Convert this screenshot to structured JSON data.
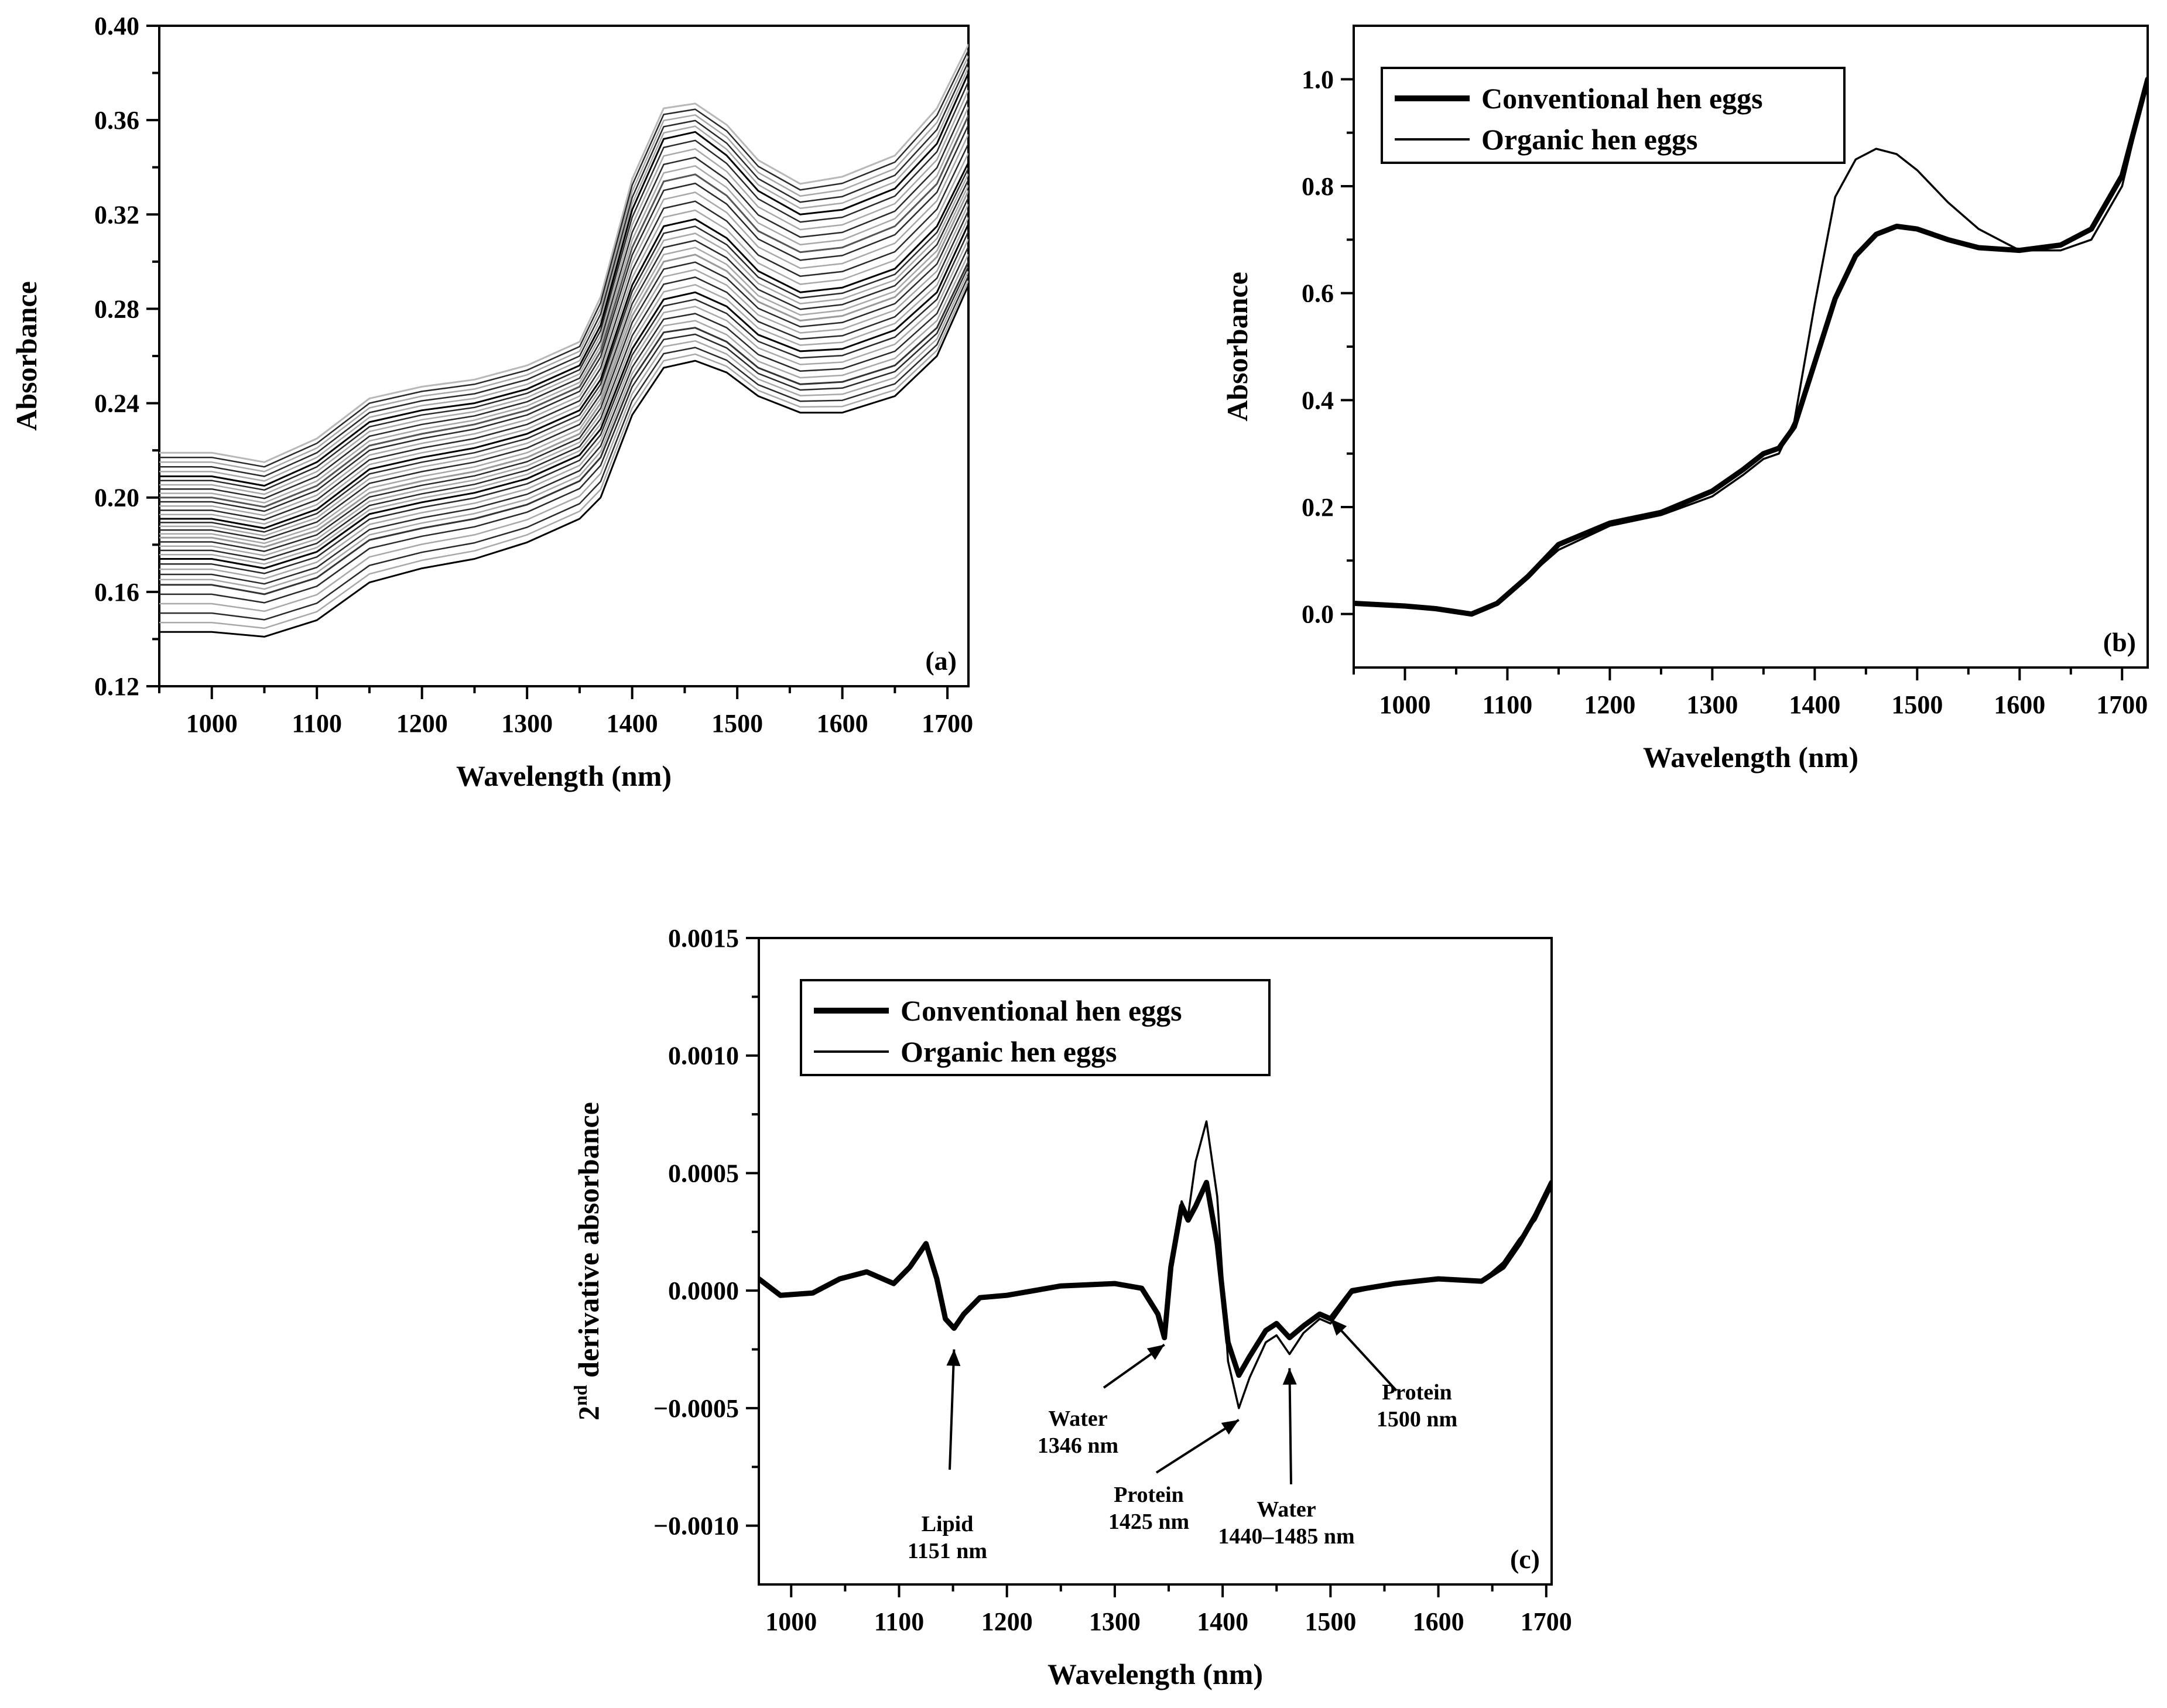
{
  "chart_data": [
    {
      "id": "a",
      "type": "line",
      "panel_label": "(a)",
      "xlabel": "Wavelength (nm)",
      "ylabel": "Absorbance",
      "xlim": [
        950,
        1720
      ],
      "ylim": [
        0.12,
        0.4
      ],
      "xticks": [
        1000,
        1100,
        1200,
        1300,
        1400,
        1500,
        1600,
        1700
      ],
      "xtick_labels": [
        "1000",
        "1100",
        "1200",
        "1300",
        "1400",
        "1500",
        "1600",
        "1700"
      ],
      "yticks": [
        0.12,
        0.16,
        0.2,
        0.24,
        0.28,
        0.32,
        0.36,
        0.4
      ],
      "ytick_labels": [
        "0.12",
        "0.16",
        "0.20",
        "0.24",
        "0.28",
        "0.32",
        "0.36",
        "0.40"
      ],
      "description_series": "many overlapping individual sample spectra",
      "x": [
        950,
        1000,
        1050,
        1100,
        1150,
        1200,
        1250,
        1300,
        1350,
        1370,
        1400,
        1430,
        1460,
        1490,
        1520,
        1560,
        1600,
        1650,
        1690,
        1720
      ],
      "series": [
        {
          "name": "highest spectrum",
          "color": "#b8b8b8",
          "values": [
            0.219,
            0.219,
            0.215,
            0.225,
            0.242,
            0.247,
            0.25,
            0.256,
            0.266,
            0.285,
            0.335,
            0.365,
            0.367,
            0.358,
            0.343,
            0.333,
            0.336,
            0.345,
            0.365,
            0.392
          ]
        },
        {
          "name": "upper spectrum",
          "color": "#000000",
          "values": [
            0.209,
            0.209,
            0.205,
            0.215,
            0.232,
            0.237,
            0.24,
            0.246,
            0.256,
            0.273,
            0.322,
            0.352,
            0.355,
            0.345,
            0.33,
            0.32,
            0.322,
            0.331,
            0.35,
            0.38
          ]
        },
        {
          "name": "upper-middle spectrum",
          "color": "#555555",
          "values": [
            0.2,
            0.2,
            0.196,
            0.205,
            0.222,
            0.227,
            0.231,
            0.237,
            0.247,
            0.262,
            0.306,
            0.334,
            0.337,
            0.328,
            0.313,
            0.304,
            0.306,
            0.315,
            0.333,
            0.362
          ]
        },
        {
          "name": "middle spectrum",
          "color": "#000000",
          "values": [
            0.191,
            0.191,
            0.187,
            0.195,
            0.212,
            0.217,
            0.221,
            0.227,
            0.237,
            0.25,
            0.29,
            0.315,
            0.318,
            0.31,
            0.296,
            0.287,
            0.289,
            0.297,
            0.315,
            0.342
          ]
        },
        {
          "name": "mid-grey spectrum",
          "color": "#9a9a9a",
          "values": [
            0.183,
            0.183,
            0.179,
            0.186,
            0.202,
            0.207,
            0.211,
            0.217,
            0.227,
            0.24,
            0.277,
            0.3,
            0.303,
            0.296,
            0.283,
            0.275,
            0.277,
            0.285,
            0.302,
            0.33
          ]
        },
        {
          "name": "lower-middle spectrum",
          "color": "#000000",
          "values": [
            0.174,
            0.174,
            0.17,
            0.177,
            0.193,
            0.198,
            0.202,
            0.208,
            0.218,
            0.229,
            0.263,
            0.284,
            0.287,
            0.281,
            0.269,
            0.262,
            0.263,
            0.271,
            0.287,
            0.316
          ]
        },
        {
          "name": "lower spectrum",
          "color": "#333333",
          "values": [
            0.163,
            0.163,
            0.159,
            0.166,
            0.182,
            0.187,
            0.191,
            0.197,
            0.207,
            0.217,
            0.25,
            0.27,
            0.272,
            0.266,
            0.255,
            0.248,
            0.249,
            0.256,
            0.272,
            0.3
          ]
        },
        {
          "name": "lowest spectrum",
          "color": "#000000",
          "values": [
            0.143,
            0.143,
            0.141,
            0.148,
            0.164,
            0.17,
            0.174,
            0.181,
            0.191,
            0.2,
            0.235,
            0.255,
            0.258,
            0.253,
            0.243,
            0.236,
            0.236,
            0.243,
            0.26,
            0.29
          ]
        }
      ]
    },
    {
      "id": "b",
      "type": "line",
      "panel_label": "(b)",
      "xlabel": "Wavelength (nm)",
      "ylabel": "Absorbance",
      "xlim": [
        950,
        1725
      ],
      "ylim": [
        -0.1,
        1.1
      ],
      "xticks": [
        1000,
        1100,
        1200,
        1300,
        1400,
        1500,
        1600,
        1700
      ],
      "xtick_labels": [
        "1000",
        "1100",
        "1200",
        "1300",
        "1400",
        "1500",
        "1600",
        "1700"
      ],
      "yticks": [
        0.0,
        0.2,
        0.4,
        0.6,
        0.8,
        1.0
      ],
      "ytick_labels": [
        "0.0",
        "0.2",
        "0.4",
        "0.6",
        "0.8",
        "1.0"
      ],
      "legend": [
        "Conventional hen eggs",
        "Organic hen eggs"
      ],
      "legend_position": "top-left",
      "x": [
        950,
        1000,
        1030,
        1065,
        1090,
        1120,
        1150,
        1200,
        1250,
        1300,
        1330,
        1350,
        1365,
        1380,
        1400,
        1420,
        1440,
        1460,
        1480,
        1500,
        1530,
        1560,
        1600,
        1640,
        1670,
        1700,
        1725
      ],
      "series": [
        {
          "name": "Conventional hen eggs",
          "stroke": "thick",
          "values": [
            0.02,
            0.015,
            0.01,
            0.0,
            0.02,
            0.07,
            0.13,
            0.17,
            0.19,
            0.23,
            0.27,
            0.3,
            0.31,
            0.35,
            0.47,
            0.59,
            0.67,
            0.71,
            0.725,
            0.72,
            0.7,
            0.685,
            0.68,
            0.69,
            0.72,
            0.82,
            1.0
          ]
        },
        {
          "name": "Organic hen eggs",
          "stroke": "thin",
          "values": [
            0.02,
            0.015,
            0.01,
            0.0,
            0.02,
            0.07,
            0.12,
            0.165,
            0.185,
            0.22,
            0.26,
            0.29,
            0.3,
            0.36,
            0.58,
            0.78,
            0.85,
            0.87,
            0.86,
            0.83,
            0.77,
            0.72,
            0.68,
            0.68,
            0.7,
            0.8,
            1.0
          ]
        }
      ]
    },
    {
      "id": "c",
      "type": "line",
      "panel_label": "(c)",
      "xlabel": "Wavelength (nm)",
      "ylabel_main": "2",
      "ylabel_sup": "nd",
      "ylabel_rest": " derivative absorbance",
      "xlim": [
        970,
        1705
      ],
      "ylim": [
        -0.00125,
        0.0015
      ],
      "xticks": [
        1000,
        1100,
        1200,
        1300,
        1400,
        1500,
        1600,
        1700
      ],
      "xtick_labels": [
        "1000",
        "1100",
        "1200",
        "1300",
        "1400",
        "1500",
        "1600",
        "1700"
      ],
      "yticks": [
        -0.001,
        -0.0005,
        0.0,
        0.0005,
        0.001,
        0.0015
      ],
      "ytick_labels": [
        "−0.0010",
        "−0.0005",
        "0.0000",
        "0.0005",
        "0.0010",
        "0.0015"
      ],
      "legend": [
        "Conventional hen eggs",
        "Organic hen eggs"
      ],
      "legend_position": "top-left",
      "x": [
        970,
        990,
        1020,
        1045,
        1070,
        1095,
        1110,
        1125,
        1135,
        1143,
        1151,
        1160,
        1175,
        1200,
        1250,
        1300,
        1325,
        1340,
        1346,
        1352,
        1362,
        1368,
        1375,
        1385,
        1395,
        1405,
        1415,
        1425,
        1440,
        1450,
        1462,
        1475,
        1490,
        1500,
        1520,
        1560,
        1600,
        1640,
        1660,
        1675,
        1690,
        1705
      ],
      "series": [
        {
          "name": "Conventional hen eggs",
          "stroke": "thick",
          "values": [
            5e-05,
            -2e-05,
            -1e-05,
            5e-05,
            8e-05,
            3e-05,
            0.0001,
            0.0002,
            5e-05,
            -0.00012,
            -0.00016,
            -0.0001,
            -3e-05,
            -2e-05,
            2e-05,
            3e-05,
            1e-05,
            -0.0001,
            -0.0002,
            0.0001,
            0.00036,
            0.0003,
            0.00036,
            0.00046,
            0.0002,
            -0.00022,
            -0.00036,
            -0.00028,
            -0.00017,
            -0.00014,
            -0.0002,
            -0.00015,
            -0.0001,
            -0.00012,
            0.0,
            3e-05,
            5e-05,
            4e-05,
            0.0001,
            0.0002,
            0.00032,
            0.00046
          ]
        },
        {
          "name": "Organic hen eggs",
          "stroke": "thin",
          "values": [
            5e-05,
            -2e-05,
            -1e-05,
            5e-05,
            8e-05,
            3e-05,
            0.0001,
            0.0002,
            5e-05,
            -0.00012,
            -0.00016,
            -0.0001,
            -3e-05,
            -2e-05,
            2e-05,
            3e-05,
            1e-05,
            -0.0001,
            -0.0002,
            0.00013,
            0.00038,
            0.00032,
            0.00055,
            0.00072,
            0.0004,
            -0.0003,
            -0.0005,
            -0.00037,
            -0.00022,
            -0.00019,
            -0.00027,
            -0.00018,
            -0.00012,
            -0.00014,
            -1e-05,
            3e-05,
            5e-05,
            4e-05,
            0.00012,
            0.00022,
            0.0003,
            0.00044
          ]
        }
      ],
      "annotations": [
        {
          "lines": [
            "Lipid",
            "1151 nm"
          ],
          "target_x": 1151,
          "target_y": -0.00025
        },
        {
          "lines": [
            "Water",
            "1346 nm"
          ],
          "target_x": 1346,
          "target_y": -0.00023
        },
        {
          "lines": [
            "Protein",
            "1425 nm"
          ],
          "target_x": 1415,
          "target_y": -0.00055
        },
        {
          "lines": [
            "Water",
            "1440–1485 nm"
          ],
          "target_x": 1462,
          "target_y": -0.00033
        },
        {
          "lines": [
            "Protein",
            "1500 nm"
          ],
          "target_x": 1500,
          "target_y": -0.00012
        }
      ]
    }
  ]
}
